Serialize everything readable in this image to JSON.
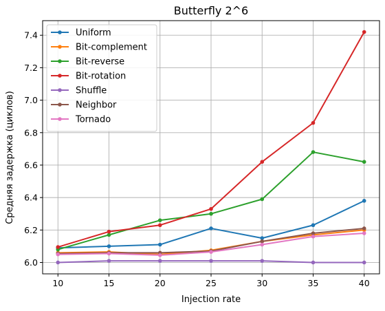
{
  "chart_data": {
    "type": "line",
    "title": "Butterfly 2^6",
    "xlabel": "Injection rate",
    "ylabel": "Средняя задержка (циклов)",
    "x": [
      10,
      15,
      20,
      25,
      30,
      35,
      40
    ],
    "xticks": [
      "10",
      "15",
      "20",
      "25",
      "30",
      "35",
      "40"
    ],
    "yticks": [
      "6.0",
      "6.2",
      "6.4",
      "6.6",
      "6.8",
      "7.0",
      "7.2",
      "7.4"
    ],
    "xlim": [
      8.5,
      41.5
    ],
    "ylim": [
      5.93,
      7.49
    ],
    "grid": true,
    "legend_position": "upper-left",
    "series": [
      {
        "name": "Uniform",
        "color": "#1f77b4",
        "values": [
          6.09,
          6.1,
          6.11,
          6.21,
          6.15,
          6.23,
          6.38
        ]
      },
      {
        "name": "Bit-complement",
        "color": "#ff7f0e",
        "values": [
          6.06,
          6.065,
          6.05,
          6.075,
          6.13,
          6.17,
          6.2
        ]
      },
      {
        "name": "Bit-reverse",
        "color": "#2ca02c",
        "values": [
          6.08,
          6.17,
          6.26,
          6.3,
          6.39,
          6.68,
          6.62
        ]
      },
      {
        "name": "Bit-rotation",
        "color": "#d62728",
        "values": [
          6.095,
          6.19,
          6.23,
          6.33,
          6.62,
          6.86,
          7.42
        ]
      },
      {
        "name": "Shuffle",
        "color": "#9467bd",
        "values": [
          6.0,
          6.01,
          6.01,
          6.01,
          6.01,
          6.0,
          6.0
        ]
      },
      {
        "name": "Neighbor",
        "color": "#8c564b",
        "values": [
          6.055,
          6.06,
          6.06,
          6.07,
          6.13,
          6.18,
          6.21
        ]
      },
      {
        "name": "Tornado",
        "color": "#e377c2",
        "values": [
          6.05,
          6.055,
          6.045,
          6.065,
          6.11,
          6.16,
          6.18
        ]
      }
    ]
  }
}
